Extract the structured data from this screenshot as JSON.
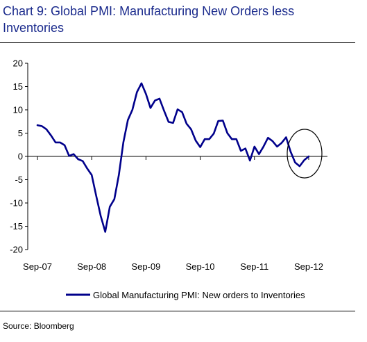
{
  "title": "Chart 9: Global PMI: Manufacturing New Orders less Inventories",
  "source": "Source: Bloomberg",
  "chart_data": {
    "type": "line",
    "ylim": [
      -20,
      20
    ],
    "yticks": [
      20,
      15,
      10,
      5,
      0,
      -5,
      -10,
      -15,
      -20
    ],
    "xtick_labels": [
      "Sep-07",
      "Sep-08",
      "Sep-09",
      "Sep-10",
      "Sep-11",
      "Sep-12"
    ],
    "legend_position": "bottom",
    "series": [
      {
        "name": "Global Manufacturing PMI: New orders to Inventories",
        "color": "#00008b",
        "x": [
          0,
          1,
          2,
          3,
          4,
          5,
          6,
          7,
          8,
          9,
          10,
          11,
          12,
          13,
          14,
          15,
          16,
          17,
          18,
          19,
          20,
          21,
          22,
          23,
          24,
          25,
          26,
          27,
          28,
          29,
          30,
          31,
          32,
          33,
          34,
          35,
          36,
          37,
          38,
          39,
          40,
          41,
          42,
          43,
          44,
          45,
          46,
          47,
          48,
          49,
          50,
          51,
          52,
          53,
          54,
          55,
          56,
          57,
          58,
          59,
          60,
          61,
          62
        ],
        "values": [
          6.7,
          6.5,
          5.8,
          4.5,
          3.0,
          3.0,
          2.4,
          0.1,
          0.5,
          -0.6,
          -1.0,
          -2.6,
          -4.0,
          -8.5,
          -12.8,
          -16.2,
          -10.8,
          -9.2,
          -4.0,
          3.0,
          7.8,
          10.0,
          13.8,
          15.7,
          13.4,
          10.4,
          12.0,
          12.4,
          9.8,
          7.4,
          7.2,
          10.1,
          9.5,
          7.0,
          5.8,
          3.4,
          2.0,
          3.7,
          3.7,
          4.9,
          7.6,
          7.7,
          5.0,
          3.7,
          3.7,
          1.2,
          1.7,
          -0.9,
          2.1,
          0.5,
          2.1,
          4.0,
          3.3,
          2.1,
          2.9,
          4.1,
          1.0,
          -1.3,
          -2.1,
          -0.8,
          0.0,
          null,
          null
        ]
      }
    ],
    "annotation": "circle"
  }
}
